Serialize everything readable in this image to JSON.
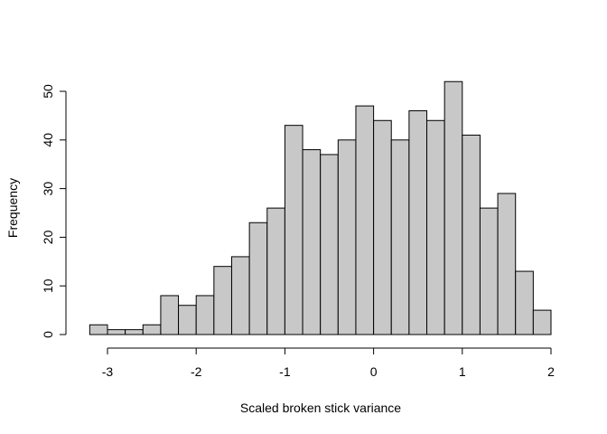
{
  "chart_data": {
    "type": "bar",
    "subtype": "histogram",
    "title": "",
    "xlabel": "Scaled broken stick variance",
    "ylabel": "Frequency",
    "bin_edges": [
      -3.2,
      -3.0,
      -2.8,
      -2.6,
      -2.4,
      -2.2,
      -2.0,
      -1.8,
      -1.6,
      -1.4,
      -1.2,
      -1.0,
      -0.8,
      -0.6,
      -0.4,
      -0.2,
      0.0,
      0.2,
      0.4,
      0.6,
      0.8,
      1.0,
      1.2,
      1.4,
      1.6,
      1.8,
      2.0
    ],
    "values": [
      2,
      1,
      1,
      2,
      8,
      6,
      8,
      14,
      16,
      23,
      26,
      43,
      38,
      37,
      40,
      47,
      44,
      40,
      46,
      44,
      52,
      41,
      26,
      29,
      13,
      5
    ],
    "xlim": [
      -3.2,
      2.0
    ],
    "ylim": [
      0,
      52
    ],
    "x_ticks": [
      -3,
      -2,
      -1,
      0,
      1,
      2
    ],
    "x_tick_labels": [
      "-3",
      "-2",
      "-1",
      "0",
      "1",
      "2"
    ],
    "y_ticks": [
      0,
      10,
      20,
      30,
      40,
      50
    ],
    "y_tick_labels": [
      "0",
      "10",
      "20",
      "30",
      "40",
      "50"
    ],
    "colors": {
      "bar_fill": "#c8c8c8",
      "bar_stroke": "#000000",
      "background": "#ffffff"
    },
    "grid": false,
    "legend": "none"
  }
}
